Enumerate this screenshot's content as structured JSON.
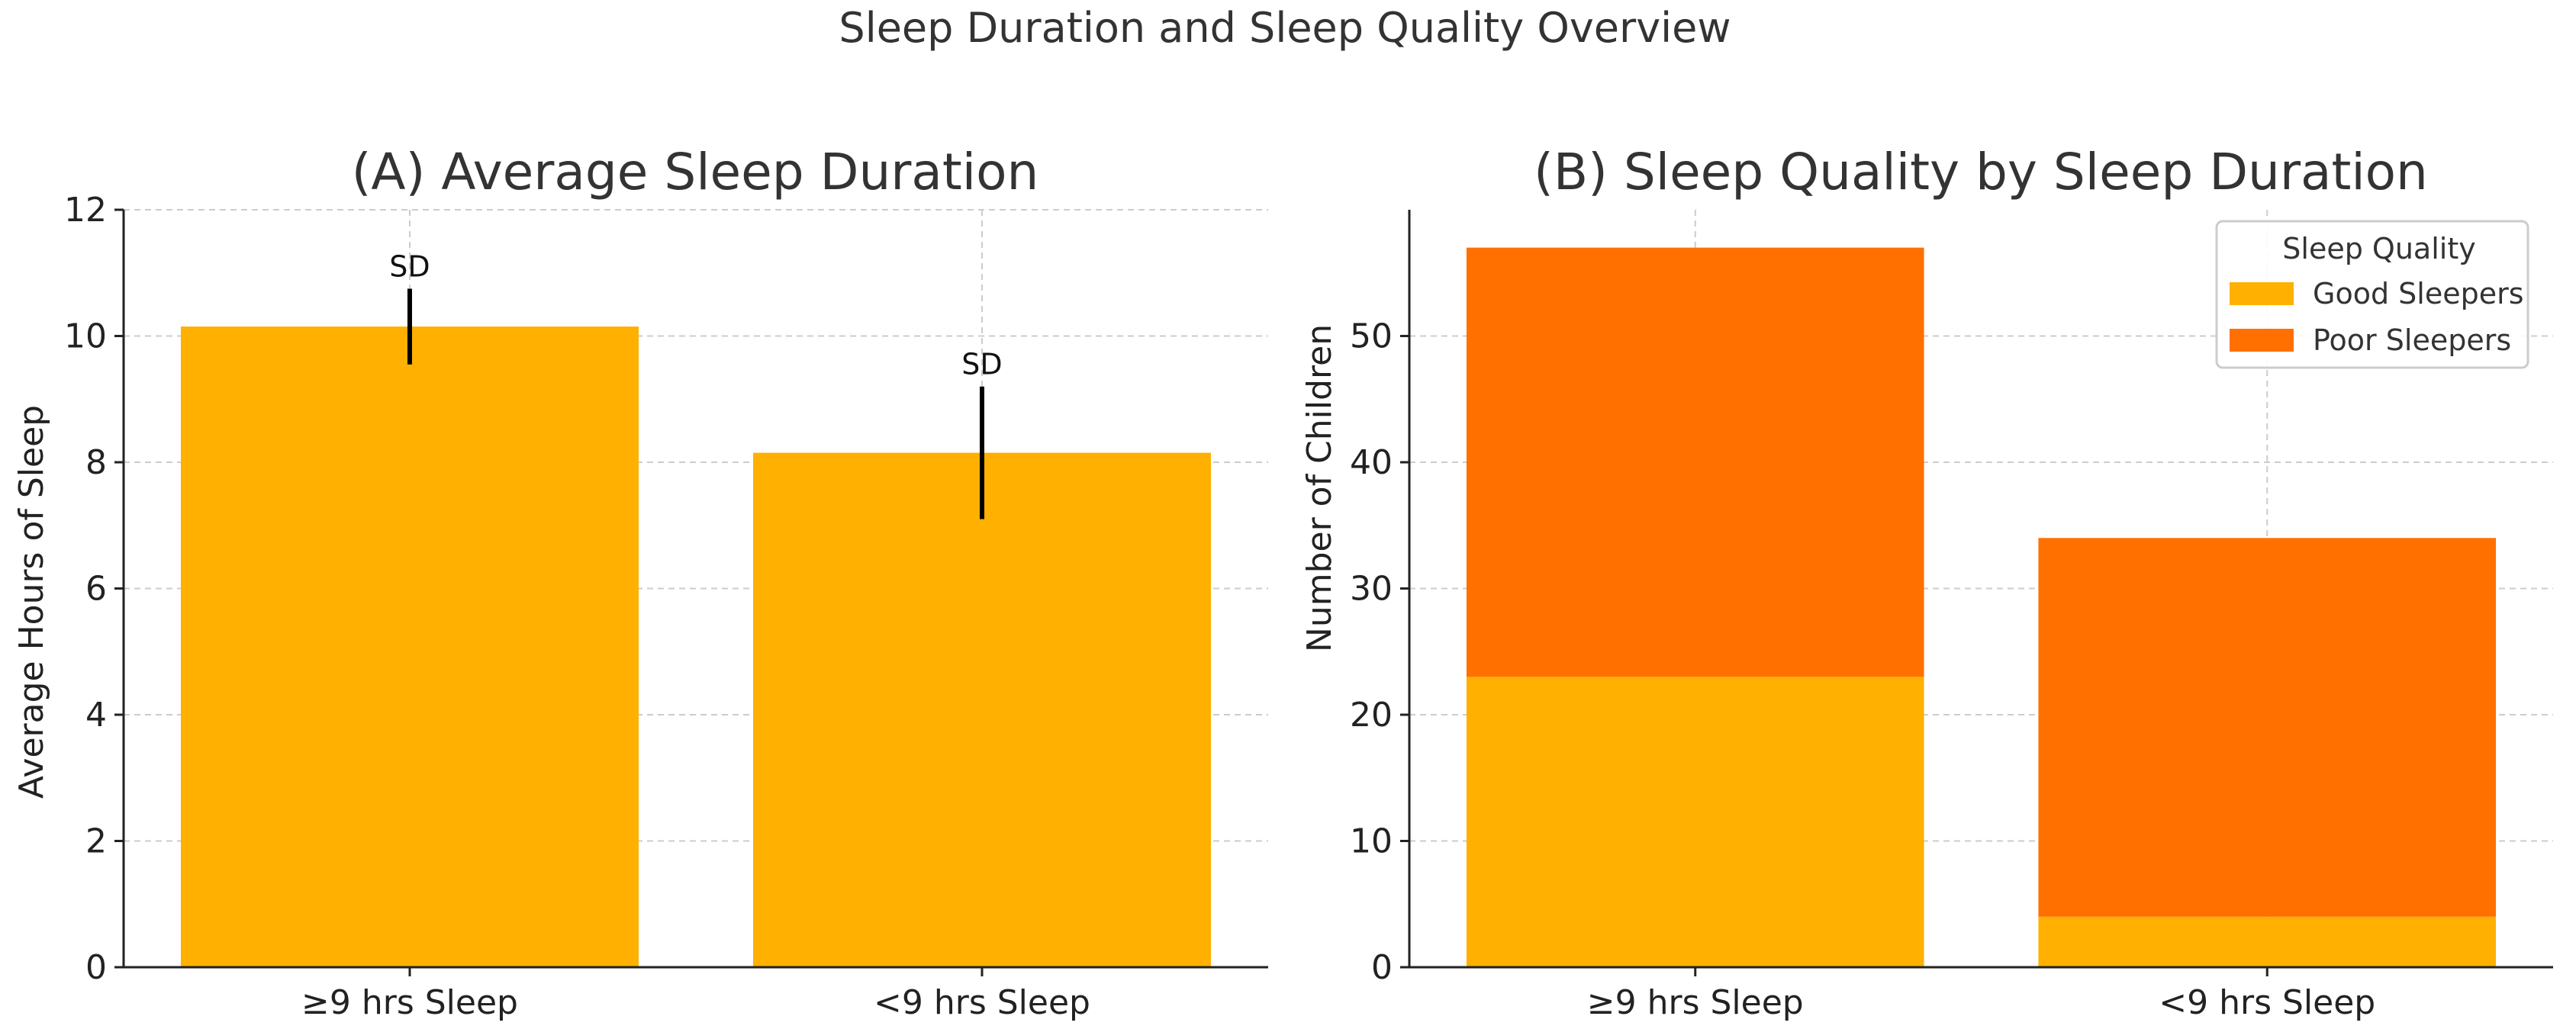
{
  "figure": {
    "title": "Sleep Duration and Sleep Quality Overview"
  },
  "colors": {
    "bar_a": "#FFB000",
    "good": "#FFB000",
    "poor": "#FF7000",
    "grid": "#cccccc",
    "axis": "#222222",
    "errorbar": "#000000"
  },
  "chart_data": [
    {
      "type": "bar",
      "title": "(A) Average Sleep Duration",
      "xlabel": "",
      "ylabel": "Average Hours of Sleep",
      "categories": [
        "≥9 hrs Sleep",
        "<9 hrs Sleep"
      ],
      "values": [
        10.15,
        8.15
      ],
      "errors": [
        {
          "low": 9.55,
          "high": 10.75,
          "label": "SD"
        },
        {
          "low": 7.1,
          "high": 9.2,
          "label": "SD"
        }
      ],
      "ylim": [
        0,
        12
      ],
      "yticks": [
        0,
        2,
        4,
        6,
        8,
        10,
        12
      ],
      "grid": true
    },
    {
      "type": "bar",
      "stacked": true,
      "title": "(B) Sleep Quality by Sleep Duration",
      "xlabel": "",
      "ylabel": "Number of Children",
      "categories": [
        "≥9 hrs Sleep",
        "<9 hrs Sleep"
      ],
      "series": [
        {
          "name": "Good Sleepers",
          "values": [
            23,
            4
          ]
        },
        {
          "name": "Poor Sleepers",
          "values": [
            34,
            30
          ]
        }
      ],
      "ylim": [
        0,
        60
      ],
      "yticks": [
        0,
        10,
        20,
        30,
        40,
        50
      ],
      "grid": true,
      "legend": {
        "title": "Sleep Quality",
        "placement": "top-right"
      }
    }
  ]
}
